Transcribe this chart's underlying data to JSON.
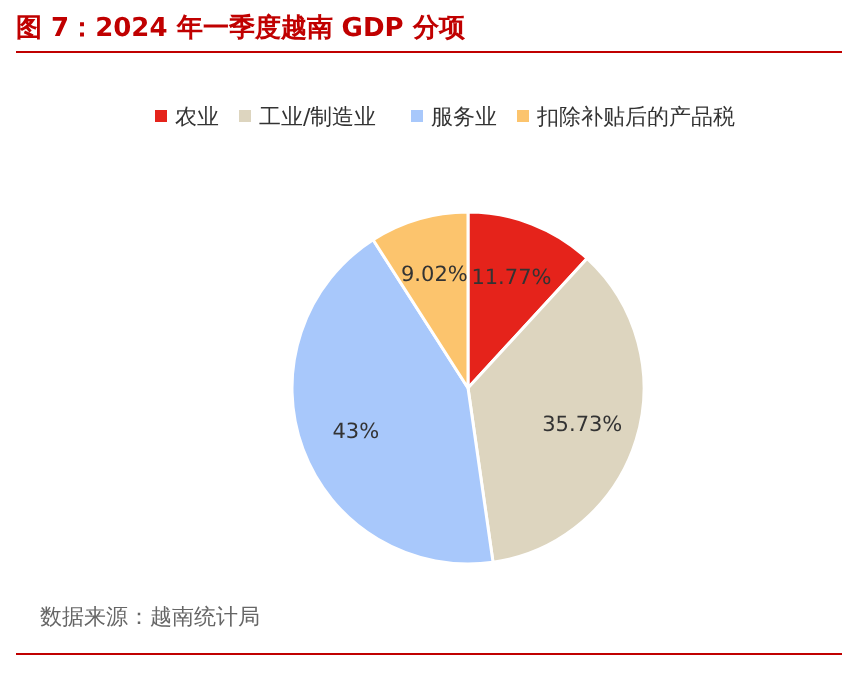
{
  "chart_data": {
    "type": "pie",
    "title": "图 7：2024 年一季度越南 GDP 分项",
    "categories": [
      "农业",
      "工业/制造业",
      "服务业",
      "扣除补贴后的产品税"
    ],
    "values": [
      11.77,
      35.73,
      43,
      9.02
    ],
    "colors": [
      "#e5231b",
      "#ddd5bf",
      "#a8c8fb",
      "#fcc46d"
    ],
    "value_labels": [
      "11.77%",
      "35.73%",
      "43%",
      "9.02%"
    ],
    "legend": "top",
    "annotations": [
      "数据来源：越南统计局"
    ]
  }
}
